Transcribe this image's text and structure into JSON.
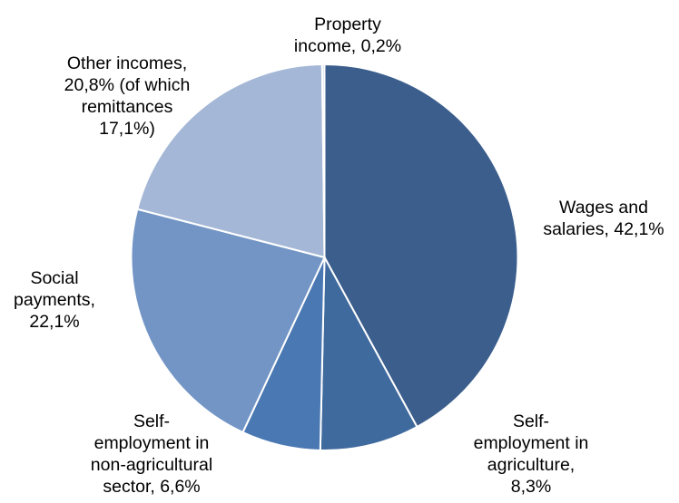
{
  "chart_data": {
    "type": "pie",
    "title": "",
    "slices": [
      {
        "label_lines": [
          "Wages and",
          "salaries, 42,1%"
        ],
        "value": 42.1,
        "color": "#3b5e8c"
      },
      {
        "label_lines": [
          "Self-",
          "employment in",
          "agriculture,",
          "8,3%"
        ],
        "value": 8.3,
        "color": "#3f6a9e"
      },
      {
        "label_lines": [
          "Self-",
          "employment in",
          "non-agricultural",
          "sector, 6,6%"
        ],
        "value": 6.6,
        "color": "#4a78b2"
      },
      {
        "label_lines": [
          "Social",
          "payments,",
          "22,1%"
        ],
        "value": 22.1,
        "color": "#7295c5"
      },
      {
        "label_lines": [
          "Other incomes,",
          "20,8% (of which",
          "remittances",
          "17,1%)"
        ],
        "value": 20.8,
        "color": "#a4b7d6"
      },
      {
        "label_lines": [
          "Property",
          "income, 0,2%"
        ],
        "value": 0.2,
        "color": "#c9d4e6"
      }
    ],
    "start": "12 o'clock",
    "direction": "clockwise",
    "legend": "none",
    "data_labels": "outside"
  }
}
